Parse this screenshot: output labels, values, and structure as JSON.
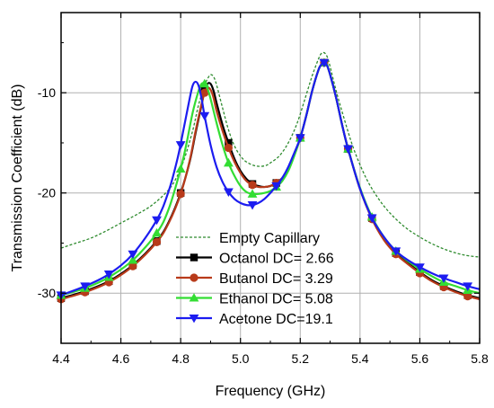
{
  "chart_data": {
    "type": "line",
    "xlabel": "Frequency (GHz)",
    "ylabel": "Transmission Coefficient (dB)",
    "xlim": [
      4.4,
      5.8
    ],
    "ylim": [
      -35,
      -2
    ],
    "x_ticks": [
      {
        "v": 4.4,
        "label": "4.4"
      },
      {
        "v": 4.6,
        "label": "4.6"
      },
      {
        "v": 4.8,
        "label": "4.8"
      },
      {
        "v": 5.0,
        "label": "5.0"
      },
      {
        "v": 5.2,
        "label": "5.2"
      },
      {
        "v": 5.4,
        "label": "5.4"
      },
      {
        "v": 5.6,
        "label": "5.6"
      },
      {
        "v": 5.8,
        "label": "5.8"
      }
    ],
    "y_ticks": [
      {
        "v": -10,
        "label": "-10"
      },
      {
        "v": -20,
        "label": "-20"
      },
      {
        "v": -30,
        "label": "-30"
      }
    ],
    "grid": true,
    "legend_position": "bottom-center",
    "series": [
      {
        "name": "Empty Capillary",
        "color": "#2e8b2e",
        "style": "dashed",
        "marker": "none",
        "x": [
          4.4,
          4.45,
          4.5,
          4.55,
          4.6,
          4.65,
          4.7,
          4.75,
          4.78,
          4.81,
          4.84,
          4.86,
          4.88,
          4.89,
          4.9,
          4.91,
          4.92,
          4.94,
          4.96,
          4.98,
          5.0,
          5.02,
          5.05,
          5.08,
          5.1,
          5.13,
          5.16,
          5.19,
          5.22,
          5.24,
          5.26,
          5.27,
          5.28,
          5.29,
          5.3,
          5.32,
          5.35,
          5.38,
          5.42,
          5.46,
          5.5,
          5.55,
          5.6,
          5.65,
          5.7,
          5.75,
          5.8
        ],
        "y": [
          -25.5,
          -25.0,
          -24.5,
          -23.8,
          -23.0,
          -22.2,
          -21.3,
          -20.0,
          -18.8,
          -16.8,
          -13.8,
          -11.2,
          -9.3,
          -8.6,
          -8.2,
          -8.4,
          -9.2,
          -11.5,
          -13.7,
          -15.3,
          -16.3,
          -16.9,
          -17.3,
          -17.3,
          -17.0,
          -16.3,
          -15.0,
          -13.0,
          -10.2,
          -8.3,
          -6.7,
          -6.1,
          -6.0,
          -6.4,
          -7.4,
          -9.8,
          -12.9,
          -15.7,
          -18.5,
          -20.5,
          -22.0,
          -23.4,
          -24.4,
          -25.2,
          -25.8,
          -26.2,
          -26.4
        ]
      },
      {
        "name": "Octanol DC= 2.66",
        "color": "#000000",
        "style": "solid",
        "marker": "square",
        "x": [
          4.4,
          4.48,
          4.56,
          4.64,
          4.72,
          4.76,
          4.8,
          4.83,
          4.85,
          4.87,
          4.88,
          4.89,
          4.9,
          4.91,
          4.92,
          4.94,
          4.96,
          4.98,
          5.0,
          5.02,
          5.04,
          5.06,
          5.08,
          5.1,
          5.12,
          5.14,
          5.16,
          5.18,
          5.2,
          5.22,
          5.24,
          5.26,
          5.27,
          5.28,
          5.29,
          5.3,
          5.32,
          5.34,
          5.36,
          5.4,
          5.44,
          5.48,
          5.52,
          5.56,
          5.6,
          5.64,
          5.68,
          5.72,
          5.76,
          5.8
        ],
        "y": [
          -30.5,
          -29.8,
          -28.8,
          -27.2,
          -24.8,
          -22.9,
          -20.0,
          -16.9,
          -14.0,
          -11.2,
          -9.8,
          -9.1,
          -9.1,
          -9.8,
          -11.0,
          -13.2,
          -15.0,
          -16.6,
          -17.8,
          -18.6,
          -19.1,
          -19.3,
          -19.4,
          -19.3,
          -19.0,
          -18.5,
          -17.6,
          -16.2,
          -14.5,
          -12.3,
          -9.8,
          -7.8,
          -7.2,
          -7.0,
          -7.3,
          -8.2,
          -10.5,
          -13.2,
          -15.6,
          -19.6,
          -22.5,
          -24.6,
          -26.0,
          -27.0,
          -27.9,
          -28.7,
          -29.3,
          -29.8,
          -30.2,
          -30.5
        ],
        "markers_x": [
          4.4,
          4.48,
          4.56,
          4.64,
          4.72,
          4.8,
          4.88,
          4.96,
          5.04,
          5.12,
          5.2,
          5.28,
          5.36,
          5.44,
          5.52,
          5.6,
          5.68,
          5.76
        ],
        "markers_y": [
          -30.5,
          -29.8,
          -28.8,
          -27.2,
          -24.8,
          -20.0,
          -9.8,
          -15.0,
          -19.1,
          -19.0,
          -14.5,
          -7.0,
          -15.6,
          -22.5,
          -26.0,
          -27.9,
          -29.3,
          -30.2
        ]
      },
      {
        "name": "Butanol DC= 3.29",
        "color": "#b83a1a",
        "style": "solid",
        "marker": "circle",
        "x": [
          4.4,
          4.48,
          4.56,
          4.64,
          4.72,
          4.76,
          4.8,
          4.83,
          4.85,
          4.87,
          4.88,
          4.89,
          4.9,
          4.91,
          4.92,
          4.94,
          4.96,
          4.98,
          5.0,
          5.02,
          5.04,
          5.06,
          5.08,
          5.1,
          5.12,
          5.14,
          5.16,
          5.18,
          5.2,
          5.22,
          5.24,
          5.26,
          5.27,
          5.28,
          5.29,
          5.3,
          5.32,
          5.34,
          5.36,
          5.4,
          5.44,
          5.48,
          5.52,
          5.56,
          5.6,
          5.64,
          5.68,
          5.72,
          5.76,
          5.8
        ],
        "y": [
          -30.6,
          -29.9,
          -28.9,
          -27.3,
          -24.9,
          -23.0,
          -20.1,
          -16.8,
          -13.8,
          -11.1,
          -10.0,
          -9.5,
          -9.7,
          -10.5,
          -11.8,
          -13.8,
          -15.5,
          -16.9,
          -18.0,
          -18.8,
          -19.2,
          -19.4,
          -19.4,
          -19.3,
          -19.0,
          -18.5,
          -17.6,
          -16.2,
          -14.5,
          -12.3,
          -9.8,
          -7.8,
          -7.2,
          -7.0,
          -7.3,
          -8.2,
          -10.5,
          -13.2,
          -15.6,
          -19.6,
          -22.6,
          -24.7,
          -26.1,
          -27.1,
          -28.0,
          -28.8,
          -29.4,
          -29.9,
          -30.3,
          -30.6
        ],
        "markers_x": [
          4.4,
          4.48,
          4.56,
          4.64,
          4.72,
          4.8,
          4.88,
          4.96,
          5.04,
          5.12,
          5.2,
          5.28,
          5.36,
          5.44,
          5.52,
          5.6,
          5.68,
          5.76
        ],
        "markers_y": [
          -30.6,
          -29.9,
          -28.9,
          -27.3,
          -24.9,
          -20.1,
          -10.0,
          -15.5,
          -19.2,
          -19.0,
          -14.5,
          -7.0,
          -15.6,
          -22.6,
          -26.1,
          -28.0,
          -29.4,
          -30.3
        ]
      },
      {
        "name": "Ethanol DC= 5.08",
        "color": "#33dd33",
        "style": "solid",
        "marker": "triangle-up",
        "x": [
          4.4,
          4.48,
          4.56,
          4.64,
          4.72,
          4.76,
          4.8,
          4.82,
          4.84,
          4.86,
          4.87,
          4.88,
          4.89,
          4.9,
          4.92,
          4.94,
          4.96,
          4.98,
          5.0,
          5.02,
          5.04,
          5.06,
          5.08,
          5.1,
          5.12,
          5.14,
          5.16,
          5.18,
          5.2,
          5.22,
          5.24,
          5.26,
          5.27,
          5.28,
          5.29,
          5.3,
          5.32,
          5.34,
          5.36,
          5.4,
          5.44,
          5.48,
          5.52,
          5.56,
          5.6,
          5.64,
          5.68,
          5.72,
          5.76,
          5.8
        ],
        "y": [
          -30.2,
          -29.5,
          -28.4,
          -26.7,
          -24.0,
          -21.6,
          -17.6,
          -15.0,
          -12.0,
          -9.8,
          -9.1,
          -9.1,
          -9.6,
          -10.6,
          -13.0,
          -15.2,
          -17.0,
          -18.3,
          -19.3,
          -19.9,
          -20.1,
          -20.1,
          -20.0,
          -19.8,
          -19.4,
          -18.8,
          -17.8,
          -16.3,
          -14.5,
          -12.3,
          -9.8,
          -7.8,
          -7.2,
          -7.0,
          -7.3,
          -8.2,
          -10.5,
          -13.2,
          -15.6,
          -19.5,
          -22.4,
          -24.4,
          -25.8,
          -26.8,
          -27.6,
          -28.3,
          -28.9,
          -29.3,
          -29.7,
          -30.0
        ],
        "markers_x": [
          4.4,
          4.48,
          4.56,
          4.64,
          4.72,
          4.8,
          4.88,
          4.96,
          5.04,
          5.12,
          5.2,
          5.28,
          5.36,
          5.44,
          5.52,
          5.6,
          5.68,
          5.76
        ],
        "markers_y": [
          -30.2,
          -29.5,
          -28.4,
          -26.7,
          -24.0,
          -17.6,
          -9.1,
          -17.0,
          -20.1,
          -19.4,
          -14.5,
          -7.0,
          -15.6,
          -22.4,
          -25.8,
          -27.6,
          -28.9,
          -29.7
        ]
      },
      {
        "name": "Acetone DC=19.1",
        "color": "#1c1cf0",
        "style": "solid",
        "marker": "triangle-down",
        "x": [
          4.4,
          4.48,
          4.56,
          4.64,
          4.72,
          4.76,
          4.79,
          4.81,
          4.83,
          4.84,
          4.85,
          4.86,
          4.87,
          4.88,
          4.9,
          4.92,
          4.94,
          4.96,
          4.98,
          5.0,
          5.02,
          5.04,
          5.06,
          5.08,
          5.1,
          5.12,
          5.14,
          5.16,
          5.18,
          5.2,
          5.22,
          5.24,
          5.26,
          5.27,
          5.28,
          5.29,
          5.3,
          5.32,
          5.34,
          5.36,
          5.4,
          5.44,
          5.48,
          5.52,
          5.56,
          5.6,
          5.64,
          5.68,
          5.72,
          5.76,
          5.8
        ],
        "y": [
          -30.2,
          -29.3,
          -28.1,
          -26.1,
          -22.7,
          -19.8,
          -16.5,
          -13.6,
          -10.6,
          -9.3,
          -8.9,
          -9.3,
          -10.6,
          -12.3,
          -15.2,
          -17.4,
          -18.9,
          -19.9,
          -20.6,
          -21.0,
          -21.2,
          -21.2,
          -21.0,
          -20.6,
          -20.0,
          -19.3,
          -18.5,
          -17.4,
          -16.0,
          -14.5,
          -12.3,
          -9.8,
          -7.8,
          -7.2,
          -7.0,
          -7.3,
          -8.2,
          -10.5,
          -13.2,
          -15.6,
          -19.6,
          -22.5,
          -24.4,
          -25.8,
          -26.7,
          -27.4,
          -28.0,
          -28.5,
          -28.9,
          -29.3,
          -29.6
        ],
        "markers_x": [
          4.4,
          4.48,
          4.56,
          4.64,
          4.72,
          4.8,
          4.88,
          4.96,
          5.04,
          5.12,
          5.2,
          5.28,
          5.36,
          5.44,
          5.52,
          5.6,
          5.68,
          5.76
        ],
        "markers_y": [
          -30.2,
          -29.3,
          -28.1,
          -26.1,
          -22.7,
          -15.2,
          -12.3,
          -19.9,
          -21.2,
          -19.3,
          -14.5,
          -7.0,
          -15.6,
          -22.5,
          -25.8,
          -27.4,
          -28.5,
          -29.3
        ]
      }
    ]
  }
}
